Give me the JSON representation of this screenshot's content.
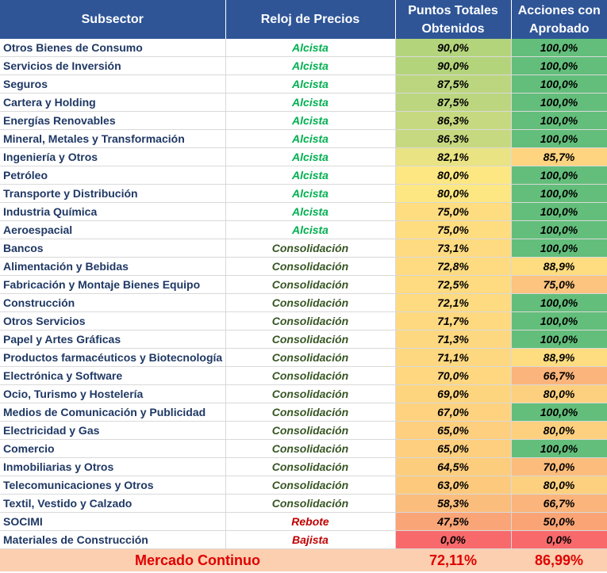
{
  "header": {
    "subsector": "Subsector",
    "reloj": "Reloj de Precios",
    "puntos_line1": "Puntos Totales",
    "puntos_line2": "Obtenidos",
    "acciones_line1": "Acciones con",
    "acciones_line2": "Aprobado"
  },
  "colors": {
    "header_bg": "#2f5597",
    "alcista": "#00b050",
    "consolidacion": "#375623",
    "rebote_bajista": "#c00000",
    "footer_bg": "#fbcfb0",
    "footer_text": "#e00000"
  },
  "rows": [
    {
      "subsector": "Otros Bienes de Consumo",
      "reloj": "Alcista",
      "phase": "alcista",
      "puntos": "90,0%",
      "acciones": "100,0%",
      "pts_color": "#b4d47c",
      "acc_color": "#63be7b"
    },
    {
      "subsector": "Servicios de Inversión",
      "reloj": "Alcista",
      "phase": "alcista",
      "puntos": "90,0%",
      "acciones": "100,0%",
      "pts_color": "#b4d47c",
      "acc_color": "#63be7b"
    },
    {
      "subsector": "Seguros",
      "reloj": "Alcista",
      "phase": "alcista",
      "puntos": "87,5%",
      "acciones": "100,0%",
      "pts_color": "#bcd67f",
      "acc_color": "#63be7b"
    },
    {
      "subsector": "Cartera y Holding",
      "reloj": "Alcista",
      "phase": "alcista",
      "puntos": "87,5%",
      "acciones": "100,0%",
      "pts_color": "#bcd67f",
      "acc_color": "#63be7b"
    },
    {
      "subsector": "Energías Renovables",
      "reloj": "Alcista",
      "phase": "alcista",
      "puntos": "86,3%",
      "acciones": "100,0%",
      "pts_color": "#c7d980",
      "acc_color": "#63be7b"
    },
    {
      "subsector": "Mineral, Metales y Transformación",
      "reloj": "Alcista",
      "phase": "alcista",
      "puntos": "86,3%",
      "acciones": "100,0%",
      "pts_color": "#c7d980",
      "acc_color": "#63be7b"
    },
    {
      "subsector": "Ingeniería y Otros",
      "reloj": "Alcista",
      "phase": "alcista",
      "puntos": "82,1%",
      "acciones": "85,7%",
      "pts_color": "#e9e383",
      "acc_color": "#fed480"
    },
    {
      "subsector": "Petróleo",
      "reloj": "Alcista",
      "phase": "alcista",
      "puntos": "80,0%",
      "acciones": "100,0%",
      "pts_color": "#fde783",
      "acc_color": "#63be7b"
    },
    {
      "subsector": "Transporte y Distribución",
      "reloj": "Alcista",
      "phase": "alcista",
      "puntos": "80,0%",
      "acciones": "100,0%",
      "pts_color": "#fde783",
      "acc_color": "#63be7b"
    },
    {
      "subsector": "Industria Química",
      "reloj": "Alcista",
      "phase": "alcista",
      "puntos": "75,0%",
      "acciones": "100,0%",
      "pts_color": "#fedd81",
      "acc_color": "#63be7b"
    },
    {
      "subsector": "Aeroespacial",
      "reloj": "Alcista",
      "phase": "alcista",
      "puntos": "75,0%",
      "acciones": "100,0%",
      "pts_color": "#fedd81",
      "acc_color": "#63be7b"
    },
    {
      "subsector": "Bancos",
      "reloj": "Consolidación",
      "phase": "consolidacion",
      "puntos": "73,1%",
      "acciones": "100,0%",
      "pts_color": "#fedb81",
      "acc_color": "#63be7b"
    },
    {
      "subsector": "Alimentación y Bebidas",
      "reloj": "Consolidación",
      "phase": "consolidacion",
      "puntos": "72,8%",
      "acciones": "88,9%",
      "pts_color": "#fedb81",
      "acc_color": "#fedd81"
    },
    {
      "subsector": "Fabricación y Montaje Bienes Equipo",
      "reloj": "Consolidación",
      "phase": "consolidacion",
      "puntos": "72,5%",
      "acciones": "75,0%",
      "pts_color": "#feda80",
      "acc_color": "#fcc47e"
    },
    {
      "subsector": "Construcción",
      "reloj": "Consolidación",
      "phase": "consolidacion",
      "puntos": "72,1%",
      "acciones": "100,0%",
      "pts_color": "#feda80",
      "acc_color": "#63be7b"
    },
    {
      "subsector": "Otros Servicios",
      "reloj": "Consolidación",
      "phase": "consolidacion",
      "puntos": "71,7%",
      "acciones": "100,0%",
      "pts_color": "#fed980",
      "acc_color": "#63be7b"
    },
    {
      "subsector": "Papel y Artes Gráficas",
      "reloj": "Consolidación",
      "phase": "consolidacion",
      "puntos": "71,3%",
      "acciones": "100,0%",
      "pts_color": "#fed880",
      "acc_color": "#63be7b"
    },
    {
      "subsector": "Productos farmacéuticos y Biotecnología",
      "reloj": "Consolidación",
      "phase": "consolidacion",
      "puntos": "71,1%",
      "acciones": "88,9%",
      "pts_color": "#fed880",
      "acc_color": "#fedd81"
    },
    {
      "subsector": "Electrónica y Software",
      "reloj": "Consolidación",
      "phase": "consolidacion",
      "puntos": "70,0%",
      "acciones": "66,7%",
      "pts_color": "#fed780",
      "acc_color": "#fbb47b"
    },
    {
      "subsector": "Ocio, Turismo y Hostelería",
      "reloj": "Consolidación",
      "phase": "consolidacion",
      "puntos": "69,0%",
      "acciones": "80,0%",
      "pts_color": "#fed57f",
      "acc_color": "#fdd07f"
    },
    {
      "subsector": "Medios de Comunicación y Publicidad",
      "reloj": "Consolidación",
      "phase": "consolidacion",
      "puntos": "67,0%",
      "acciones": "100,0%",
      "pts_color": "#fed27f",
      "acc_color": "#63be7b"
    },
    {
      "subsector": "Electricidad y Gas",
      "reloj": "Consolidación",
      "phase": "consolidacion",
      "puntos": "65,0%",
      "acciones": "80,0%",
      "pts_color": "#fdcf7e",
      "acc_color": "#fdd07f"
    },
    {
      "subsector": "Comercio",
      "reloj": "Consolidación",
      "phase": "consolidacion",
      "puntos": "65,0%",
      "acciones": "100,0%",
      "pts_color": "#fdcf7e",
      "acc_color": "#63be7b"
    },
    {
      "subsector": "Inmobiliarias y Otros",
      "reloj": "Consolidación",
      "phase": "consolidacion",
      "puntos": "64,5%",
      "acciones": "70,0%",
      "pts_color": "#fdcd7e",
      "acc_color": "#fcbc7c"
    },
    {
      "subsector": "Telecomunicaciones y Otros",
      "reloj": "Consolidación",
      "phase": "consolidacion",
      "puntos": "63,0%",
      "acciones": "80,0%",
      "pts_color": "#fdca7d",
      "acc_color": "#fdd07f"
    },
    {
      "subsector": "Textil, Vestido y Calzado",
      "reloj": "Consolidación",
      "phase": "consolidacion",
      "puntos": "58,3%",
      "acciones": "66,7%",
      "pts_color": "#fbbd7c",
      "acc_color": "#fbb47b"
    },
    {
      "subsector": "SOCIMI",
      "reloj": "Rebote",
      "phase": "rebote",
      "puntos": "47,5%",
      "acciones": "50,0%",
      "pts_color": "#faa578",
      "acc_color": "#faa476"
    },
    {
      "subsector": "Materiales de Construcción",
      "reloj": "Bajista",
      "phase": "bajista",
      "puntos": "0,0%",
      "acciones": "0,0%",
      "pts_color": "#f8696b",
      "acc_color": "#f8696b"
    }
  ],
  "footer": {
    "label": "Mercado Continuo",
    "puntos": "72,11%",
    "acciones": "86,99%"
  }
}
